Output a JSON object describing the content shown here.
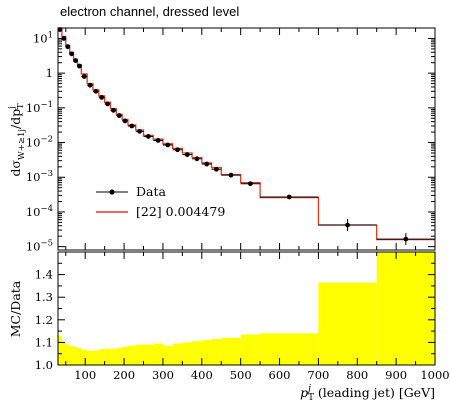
{
  "title": "electron channel, dressed level",
  "legend": {
    "data_label": "Data",
    "mc_label": "[22] 0.004479",
    "mc_color": "#e8371e",
    "data_color": "#000000"
  },
  "colors": {
    "ratio_band": "#ffff00"
  },
  "chart_data": [
    {
      "type": "line",
      "panel": "main",
      "xlabel": "p_T^j (leading jet) [GeV]",
      "ylabel": "dσ_{W+≥1j}/dp_T^j",
      "yscale": "log",
      "xlim": [
        30,
        1000
      ],
      "ylim": [
        8e-06,
        20
      ],
      "x_edges": [
        30,
        40,
        50,
        60,
        70,
        80,
        90,
        105,
        120,
        135,
        150,
        165,
        180,
        195,
        210,
        230,
        250,
        275,
        300,
        325,
        350,
        375,
        400,
        425,
        450,
        500,
        550,
        700,
        850,
        1000
      ],
      "data": {
        "name": "Data",
        "y": [
          18,
          10,
          5.8,
          3.6,
          2.3,
          1.6,
          0.8,
          0.45,
          0.3,
          0.2,
          0.13,
          0.085,
          0.06,
          0.042,
          0.03,
          0.021,
          0.015,
          0.0115,
          0.0085,
          0.0062,
          0.0045,
          0.0034,
          0.0024,
          0.0017,
          0.00115,
          0.00065,
          0.00027,
          4.2e-05,
          1.65e-05
        ]
      },
      "mc": {
        "name": "[22] 0.004479",
        "y": [
          20,
          11.5,
          6.3,
          4.0,
          2.5,
          1.75,
          0.95,
          0.5,
          0.33,
          0.22,
          0.145,
          0.095,
          0.065,
          0.046,
          0.032,
          0.023,
          0.016,
          0.0125,
          0.0092,
          0.0068,
          0.005,
          0.0037,
          0.0026,
          0.0019,
          0.0012,
          0.0007,
          0.00026,
          4.2e-05,
          1.6e-05
        ]
      },
      "x_ticks": [
        100,
        200,
        300,
        400,
        500,
        600,
        700,
        800,
        900,
        1000
      ],
      "y_ticks": [
        "10^{-5}",
        "10^{-4}",
        "10^{-3}",
        "10^{-2}",
        "10^{-1}",
        "1",
        "10^{1}"
      ]
    },
    {
      "type": "area",
      "panel": "ratio",
      "ylabel": "MC/Data",
      "xlabel": "p_T^j (leading jet) [GeV]",
      "xlim": [
        30,
        1000
      ],
      "ylim": [
        1.0,
        1.5
      ],
      "x_edges": [
        30,
        40,
        50,
        60,
        70,
        80,
        90,
        105,
        120,
        135,
        150,
        165,
        180,
        195,
        210,
        230,
        250,
        275,
        300,
        325,
        350,
        375,
        400,
        425,
        450,
        500,
        550,
        700,
        850,
        1000
      ],
      "band_low": [
        1.0,
        1.0,
        1.0,
        1.0,
        1.0,
        1.0,
        1.0,
        1.0,
        1.0,
        1.0,
        1.0,
        1.0,
        1.0,
        1.0,
        1.0,
        1.0,
        1.0,
        1.0,
        1.0,
        1.0,
        1.0,
        1.0,
        1.0,
        1.0,
        1.0,
        1.0,
        1.0,
        1.0,
        1.0
      ],
      "band_high": [
        1.13,
        1.1,
        1.09,
        1.085,
        1.08,
        1.075,
        1.068,
        1.062,
        1.065,
        1.07,
        1.072,
        1.072,
        1.075,
        1.08,
        1.085,
        1.09,
        1.09,
        1.095,
        1.085,
        1.095,
        1.1,
        1.105,
        1.11,
        1.115,
        1.12,
        1.135,
        1.14,
        1.365,
        1.5
      ],
      "y_ticks": [
        1.0,
        1.1,
        1.2,
        1.3,
        1.4
      ]
    }
  ]
}
